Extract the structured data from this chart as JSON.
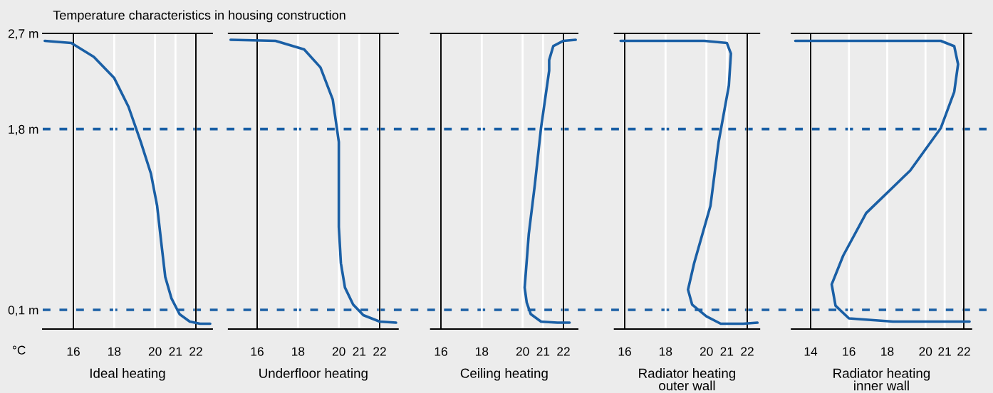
{
  "chart_data": [
    {
      "type": "line",
      "title": "Temperature characteristics in housing construction",
      "xlabel": "Ideal heating",
      "annotations": [
        "°C"
      ],
      "xlim": [
        14.5,
        22.8
      ],
      "xticks": [
        16,
        18,
        20,
        21,
        22
      ],
      "ylim": [
        -0.08,
        2.7
      ],
      "yticks": [
        {
          "value": 0.1,
          "label": "0,1 m"
        },
        {
          "value": 1.8,
          "label": "1,8 m"
        },
        {
          "value": 2.7,
          "label": "2,7 m"
        }
      ],
      "grid": "x",
      "marker": "none",
      "line_style": "solid",
      "ref_lines": [
        {
          "axis": "y",
          "value": 1.8,
          "color": "#1a5fa5",
          "line_style": "dashed"
        },
        {
          "axis": "y",
          "value": 0.1,
          "color": "#1a5fa5",
          "line_style": "dashed"
        }
      ],
      "series": [
        {
          "color": "#1a5fa5",
          "x": [
            14.6,
            15.9,
            17.0,
            18.0,
            18.7,
            19.3,
            19.8,
            20.1,
            20.3,
            20.5,
            20.8,
            21.2,
            21.7,
            22.2,
            22.7
          ],
          "values": [
            2.63,
            2.61,
            2.48,
            2.28,
            2.01,
            1.68,
            1.38,
            1.08,
            0.74,
            0.41,
            0.21,
            0.06,
            -0.01,
            -0.03,
            -0.03
          ]
        }
      ]
    },
    {
      "type": "line",
      "xlabel": "Underfloor heating",
      "xlim": [
        14.6,
        22.9
      ],
      "xticks": [
        16,
        18,
        20,
        21,
        22
      ],
      "ylim": [
        -0.08,
        2.7
      ],
      "tick_labels": "x",
      "grid": "x",
      "marker": "none",
      "line_style": "solid",
      "series": [
        {
          "color": "#1a5fa5",
          "x": [
            14.7,
            16.9,
            18.3,
            19.1,
            19.7,
            20.0,
            20.0,
            20.0,
            20.1,
            20.3,
            20.7,
            21.2,
            22.0,
            22.8
          ],
          "values": [
            2.64,
            2.63,
            2.55,
            2.38,
            2.08,
            1.68,
            1.28,
            0.88,
            0.54,
            0.31,
            0.15,
            0.05,
            -0.01,
            -0.02
          ]
        }
      ]
    },
    {
      "type": "line",
      "xlabel": "Ceiling heating",
      "xlim": [
        15.5,
        22.7
      ],
      "xticks": [
        16,
        18,
        20,
        21,
        22
      ],
      "ylim": [
        -0.08,
        2.7
      ],
      "tick_labels": "x",
      "grid": "x",
      "marker": "none",
      "line_style": "solid",
      "series": [
        {
          "color": "#1a5fa5",
          "x": [
            22.6,
            22.0,
            21.5,
            21.3,
            21.3,
            20.9,
            20.6,
            20.3,
            20.1,
            20.2,
            20.4,
            20.9,
            21.7,
            22.3
          ],
          "values": [
            2.64,
            2.63,
            2.58,
            2.45,
            2.35,
            1.81,
            1.28,
            0.81,
            0.31,
            0.17,
            0.06,
            -0.01,
            -0.02,
            -0.02
          ]
        }
      ]
    },
    {
      "type": "line",
      "xlabel": "Radiator heating\nouter wall",
      "xlim": [
        15.5,
        22.6
      ],
      "xticks": [
        16,
        18,
        20,
        21,
        22
      ],
      "ylim": [
        -0.08,
        2.7
      ],
      "tick_labels": "x",
      "grid": "x",
      "marker": "none",
      "line_style": "solid",
      "series": [
        {
          "color": "#1a5fa5",
          "x": [
            15.8,
            17.1,
            19.9,
            21.0,
            21.2,
            21.1,
            20.6,
            20.2,
            19.4,
            19.1,
            19.3,
            20.0,
            20.7,
            21.8,
            22.5
          ],
          "values": [
            2.63,
            2.63,
            2.63,
            2.61,
            2.51,
            2.21,
            1.68,
            1.08,
            0.54,
            0.29,
            0.15,
            0.04,
            -0.03,
            -0.03,
            -0.02
          ]
        }
      ]
    },
    {
      "type": "line",
      "xlabel": "Radiator heating\ninner wall",
      "xlim": [
        13.0,
        22.4
      ],
      "xticks": [
        14,
        16,
        18,
        20,
        21,
        22
      ],
      "ylim": [
        -0.08,
        2.7
      ],
      "tick_labels": "x",
      "grid": "x",
      "marker": "none",
      "line_style": "solid",
      "series": [
        {
          "color": "#1a5fa5",
          "x": [
            13.2,
            16.9,
            20.8,
            21.5,
            21.7,
            21.5,
            20.8,
            19.2,
            16.9,
            15.7,
            15.1,
            15.3,
            16.0,
            18.3,
            20.8,
            22.3
          ],
          "values": [
            2.63,
            2.63,
            2.63,
            2.58,
            2.41,
            2.15,
            1.81,
            1.41,
            1.01,
            0.61,
            0.34,
            0.14,
            0.02,
            -0.01,
            -0.01,
            -0.01
          ]
        }
      ]
    }
  ]
}
